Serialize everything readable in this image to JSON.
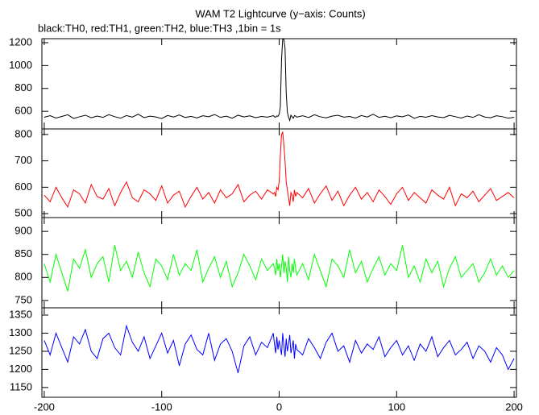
{
  "chart_data": {
    "type": "line",
    "title": "WAM T2 Lightcurve (y−axis: Counts)",
    "subtitle": "black:TH0, red:TH1, green:TH2, blue:TH3 ,1bin = 1s",
    "xlim": [
      -202,
      202
    ],
    "xticks": [
      -200,
      -100,
      0,
      100,
      200
    ],
    "x": [
      -200,
      -195,
      -190,
      -185,
      -180,
      -175,
      -170,
      -165,
      -160,
      -155,
      -150,
      -145,
      -140,
      -135,
      -130,
      -125,
      -120,
      -115,
      -110,
      -105,
      -100,
      -95,
      -90,
      -85,
      -80,
      -75,
      -70,
      -65,
      -60,
      -55,
      -50,
      -45,
      -40,
      -35,
      -30,
      -25,
      -20,
      -15,
      -10,
      -5,
      -4,
      -3,
      -2,
      -1,
      0,
      1,
      2,
      3,
      4,
      5,
      6,
      7,
      8,
      9,
      10,
      11,
      12,
      13,
      14,
      15,
      20,
      25,
      30,
      35,
      40,
      45,
      50,
      55,
      60,
      65,
      70,
      75,
      80,
      85,
      90,
      95,
      100,
      105,
      110,
      115,
      120,
      125,
      130,
      135,
      140,
      145,
      150,
      155,
      160,
      165,
      170,
      175,
      180,
      185,
      190,
      195,
      200
    ],
    "series": [
      {
        "color": "#000000",
        "ylim": [
          446,
          1235
        ],
        "yticks": [
          600,
          800,
          1000,
          1200
        ],
        "values": [
          548,
          562,
          541,
          555,
          570,
          538,
          552,
          566,
          544,
          559,
          547,
          571,
          553,
          540,
          563,
          549,
          575,
          545,
          558,
          551,
          537,
          564,
          550,
          568,
          546,
          556,
          542,
          561,
          553,
          572,
          547,
          558,
          540,
          566,
          551,
          560,
          545,
          555,
          549,
          562,
          553,
          548,
          560,
          556,
          575,
          640,
          1050,
          1230,
          1230,
          1150,
          760,
          590,
          548,
          520,
          566,
          552,
          540,
          563,
          558,
          549,
          561,
          546,
          570,
          552,
          543,
          558,
          566,
          549,
          555,
          541,
          563,
          550,
          574,
          547,
          557,
          544,
          560,
          552,
          568,
          539,
          556,
          548,
          562,
          551,
          545,
          565,
          553,
          541,
          559,
          547,
          570,
          550,
          544,
          561,
          553,
          540,
          548
        ]
      },
      {
        "color": "#ff0000",
        "ylim": [
          485,
          821
        ],
        "yticks": [
          500,
          600,
          700,
          800
        ],
        "values": [
          570,
          545,
          600,
          560,
          525,
          590,
          575,
          540,
          610,
          565,
          555,
          595,
          530,
          580,
          620,
          560,
          545,
          590,
          575,
          550,
          605,
          540,
          570,
          585,
          525,
          565,
          600,
          555,
          580,
          540,
          590,
          560,
          575,
          610,
          545,
          570,
          585,
          555,
          590,
          575,
          580,
          565,
          600,
          590,
          620,
          720,
          800,
          810,
          760,
          700,
          620,
          590,
          560,
          530,
          580,
          570,
          545,
          590,
          565,
          580,
          560,
          595,
          540,
          575,
          605,
          550,
          585,
          530,
          570,
          600,
          555,
          580,
          545,
          590,
          565,
          535,
          575,
          600,
          550,
          580,
          560,
          540,
          590,
          570,
          555,
          600,
          530,
          575,
          560,
          585,
          545,
          570,
          595,
          550,
          565,
          580,
          560
        ]
      },
      {
        "color": "#00ff00",
        "ylim": [
          734,
          930
        ],
        "yticks": [
          750,
          800,
          850,
          900
        ],
        "values": [
          830,
          790,
          850,
          810,
          770,
          840,
          820,
          860,
          800,
          830,
          845,
          790,
          870,
          815,
          835,
          800,
          855,
          810,
          780,
          840,
          825,
          795,
          850,
          805,
          830,
          815,
          860,
          790,
          820,
          845,
          800,
          835,
          780,
          810,
          850,
          825,
          795,
          840,
          815,
          830,
          820,
          805,
          840,
          815,
          830,
          800,
          825,
          850,
          810,
          835,
          820,
          790,
          845,
          815,
          800,
          830,
          810,
          840,
          820,
          805,
          830,
          795,
          850,
          815,
          780,
          840,
          825,
          800,
          860,
          810,
          835,
          790,
          820,
          845,
          805,
          830,
          815,
          870,
          800,
          825,
          790,
          840,
          810,
          835,
          780,
          820,
          845,
          800,
          815,
          830,
          790,
          810,
          840,
          805,
          825,
          800,
          815
        ]
      },
      {
        "color": "#0000ff",
        "ylim": [
          1123,
          1370
        ],
        "yticks": [
          1150,
          1200,
          1250,
          1300,
          1350
        ],
        "values": [
          1280,
          1240,
          1300,
          1260,
          1220,
          1290,
          1270,
          1310,
          1250,
          1230,
          1285,
          1300,
          1260,
          1240,
          1320,
          1275,
          1250,
          1290,
          1230,
          1265,
          1300,
          1245,
          1280,
          1210,
          1270,
          1295,
          1255,
          1240,
          1300,
          1225,
          1270,
          1285,
          1250,
          1190,
          1265,
          1290,
          1240,
          1275,
          1260,
          1300,
          1270,
          1245,
          1290,
          1255,
          1280,
          1260,
          1240,
          1300,
          1265,
          1235,
          1285,
          1250,
          1270,
          1295,
          1245,
          1260,
          1280,
          1230,
          1270,
          1255,
          1240,
          1285,
          1260,
          1230,
          1275,
          1300,
          1250,
          1265,
          1220,
          1280,
          1245,
          1270,
          1255,
          1290,
          1235,
          1260,
          1280,
          1240,
          1265,
          1225,
          1270,
          1250,
          1290,
          1235,
          1260,
          1280,
          1240,
          1255,
          1275,
          1230,
          1265,
          1250,
          1220,
          1260,
          1240,
          1200,
          1230
        ]
      }
    ]
  }
}
